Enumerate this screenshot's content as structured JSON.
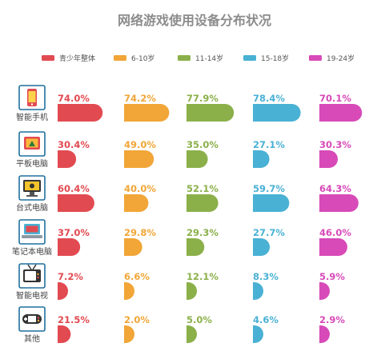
{
  "chart_data": {
    "type": "bar",
    "title": "网络游戏使用设备分布状况",
    "categories": [
      "智能手机",
      "平板电脑",
      "台式电脑",
      "笔记本电脑",
      "智能电视",
      "其他"
    ],
    "icons": [
      "smartphone-icon",
      "tablet-icon",
      "desktop-icon",
      "laptop-icon",
      "tv-icon",
      "gamepad-icon"
    ],
    "value_unit": "%",
    "xlim": [
      0,
      100
    ],
    "legend_position": "top",
    "series": [
      {
        "name": "青少年整体",
        "color": "#e24a51",
        "values": [
          74.0,
          30.4,
          60.4,
          37.0,
          7.2,
          21.5
        ]
      },
      {
        "name": "6-10岁",
        "color": "#f1a637",
        "values": [
          74.2,
          49.0,
          40.0,
          29.8,
          6.6,
          2.0
        ]
      },
      {
        "name": "11-14岁",
        "color": "#8bb04a",
        "values": [
          77.9,
          35.0,
          52.1,
          29.3,
          12.1,
          5.0
        ]
      },
      {
        "name": "15-18岁",
        "color": "#49b1d4",
        "values": [
          78.4,
          27.1,
          59.7,
          27.7,
          8.3,
          4.6
        ]
      },
      {
        "name": "19-24岁",
        "color": "#d74ab8",
        "values": [
          70.1,
          30.3,
          64.3,
          46.0,
          5.9,
          2.9
        ]
      }
    ]
  }
}
